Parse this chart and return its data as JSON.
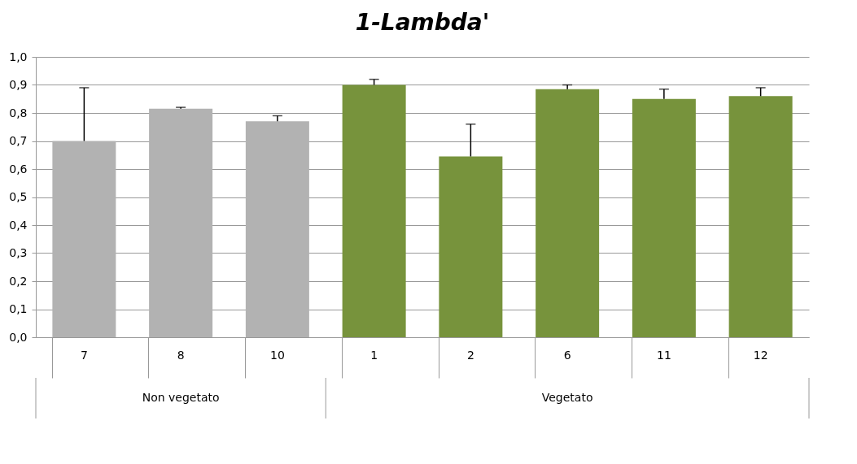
{
  "chart_data": {
    "type": "bar",
    "title": "1-Lambda'",
    "categories": [
      "7",
      "8",
      "10",
      "1",
      "2",
      "6",
      "11",
      "12"
    ],
    "values": [
      0.7,
      0.815,
      0.77,
      0.9,
      0.645,
      0.885,
      0.85,
      0.86
    ],
    "colors": [
      "#b2b2b2",
      "#b2b2b2",
      "#b2b2b2",
      "#77933c",
      "#77933c",
      "#77933c",
      "#77933c",
      "#77933c"
    ],
    "errors": [
      [
        0.7,
        0.89
      ],
      [
        0.815,
        0.82
      ],
      [
        0.77,
        0.79
      ],
      [
        0.9,
        0.92
      ],
      [
        0.645,
        0.76
      ],
      [
        0.885,
        0.9
      ],
      [
        0.85,
        0.885
      ],
      [
        0.86,
        0.89
      ]
    ],
    "ylim": [
      0,
      1
    ],
    "yticks": [
      {
        "value": 0,
        "label": "0,0"
      },
      {
        "value": 0.1,
        "label": "0,1"
      },
      {
        "value": 0.2,
        "label": "0,2"
      },
      {
        "value": 0.3,
        "label": "0,3"
      },
      {
        "value": 0.4,
        "label": "0,4"
      },
      {
        "value": 0.5,
        "label": "0,5"
      },
      {
        "value": 0.6,
        "label": "0,6"
      },
      {
        "value": 0.7,
        "label": "0,7"
      },
      {
        "value": 0.8,
        "label": "0,8"
      },
      {
        "value": 0.9,
        "label": "0,9"
      },
      {
        "value": 1,
        "label": "1,0"
      }
    ],
    "grid": "y",
    "annotations": [
      "Non vegetato",
      "Vegetato"
    ]
  }
}
